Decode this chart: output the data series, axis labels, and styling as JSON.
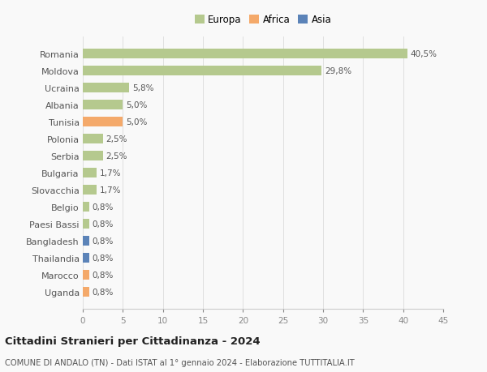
{
  "categories": [
    "Romania",
    "Moldova",
    "Ucraina",
    "Albania",
    "Tunisia",
    "Polonia",
    "Serbia",
    "Bulgaria",
    "Slovacchia",
    "Belgio",
    "Paesi Bassi",
    "Bangladesh",
    "Thailandia",
    "Marocco",
    "Uganda"
  ],
  "values": [
    40.5,
    29.8,
    5.8,
    5.0,
    5.0,
    2.5,
    2.5,
    1.7,
    1.7,
    0.8,
    0.8,
    0.8,
    0.8,
    0.8,
    0.8
  ],
  "labels": [
    "40,5%",
    "29,8%",
    "5,8%",
    "5,0%",
    "5,0%",
    "2,5%",
    "2,5%",
    "1,7%",
    "1,7%",
    "0,8%",
    "0,8%",
    "0,8%",
    "0,8%",
    "0,8%",
    "0,8%"
  ],
  "continents": [
    "Europa",
    "Europa",
    "Europa",
    "Europa",
    "Africa",
    "Europa",
    "Europa",
    "Europa",
    "Europa",
    "Europa",
    "Europa",
    "Asia",
    "Asia",
    "Africa",
    "Africa"
  ],
  "continent_colors": {
    "Europa": "#b5c98e",
    "Africa": "#f4a96a",
    "Asia": "#5b83b8"
  },
  "xlim": [
    0,
    45
  ],
  "xticks": [
    0,
    5,
    10,
    15,
    20,
    25,
    30,
    35,
    40,
    45
  ],
  "title": "Cittadini Stranieri per Cittadinanza - 2024",
  "subtitle": "COMUNE DI ANDALO (TN) - Dati ISTAT al 1° gennaio 2024 - Elaborazione TUTTITALIA.IT",
  "background_color": "#f9f9f9",
  "grid_color": "#e0e0e0",
  "bar_height": 0.55
}
